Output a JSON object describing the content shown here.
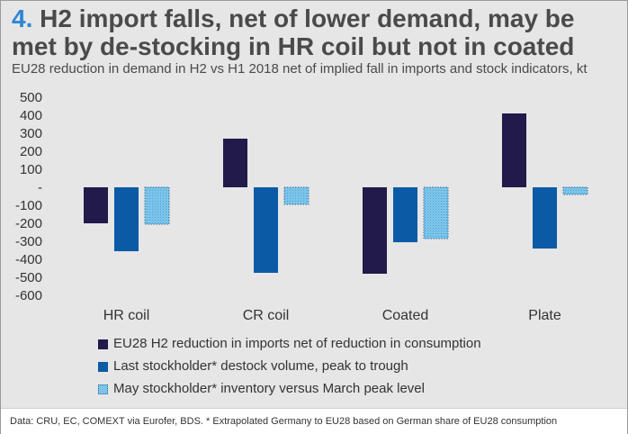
{
  "header": {
    "number": "4.",
    "title_line1": "H2 import falls, net of lower demand, may be",
    "title_line2": "met by de-stocking in HR coil but not in coated",
    "subtitle": "EU28 reduction in demand in H2 vs H1 2018 net of implied fall in imports and stock indicators, kt"
  },
  "footer": {
    "source": "Data: CRU, EC, COMEXT via Eurofer, BDS.  * Extrapolated Germany to EU28 based on German share of EU28 consumption"
  },
  "chart_data": {
    "type": "bar",
    "categories": [
      "HR coil",
      "CR coil",
      "Coated",
      "Plate"
    ],
    "series": [
      {
        "name": "EU28 H2 reduction in imports net of reduction in consumption",
        "values": [
          -200,
          270,
          -480,
          410
        ],
        "color": "#211a4a",
        "style": "solid"
      },
      {
        "name": "Last stockholder* destock volume, peak to trough",
        "values": [
          -355,
          -475,
          -305,
          -340
        ],
        "color": "#0b5aa6",
        "style": "solid"
      },
      {
        "name": "May stockholder* inventory versus March peak level",
        "values": [
          -205,
          -95,
          -285,
          -40
        ],
        "color": "#7cc4e8",
        "style": "dotted"
      }
    ],
    "ylim": [
      -600,
      500
    ],
    "yticks": [
      500,
      400,
      300,
      200,
      100,
      0,
      -100,
      -200,
      -300,
      -400,
      -500,
      -600
    ],
    "ytick_labels": [
      "500",
      "400",
      "300",
      "200",
      "100",
      "-",
      "-100",
      "-200",
      "-300",
      "-400",
      "-500",
      "-600"
    ],
    "grid": false,
    "legend_position": "bottom"
  }
}
